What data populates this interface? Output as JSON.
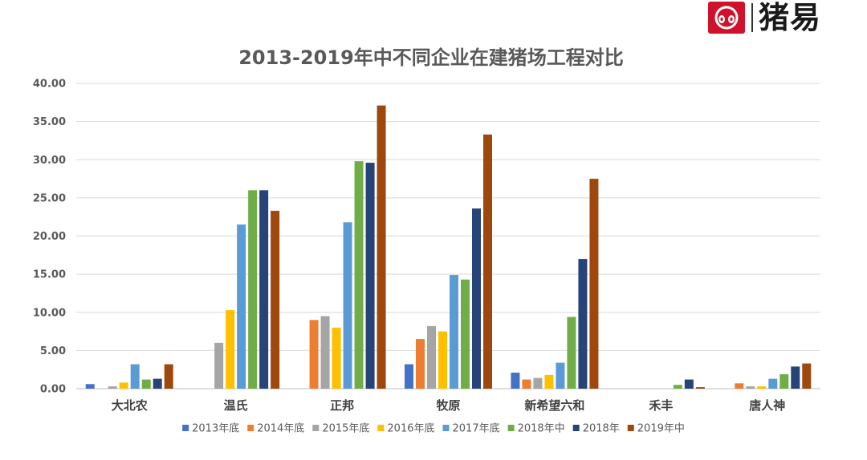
{
  "brand": {
    "name": "猪易",
    "accent": "#d0112b"
  },
  "chart_data": {
    "type": "bar",
    "title": "2013-2019年中不同企业在建猪场工程对比",
    "xlabel": "",
    "ylabel": "",
    "ylim": [
      0,
      40
    ],
    "yticks": [
      "0.00",
      "5.00",
      "10.00",
      "15.00",
      "20.00",
      "25.00",
      "30.00",
      "35.00",
      "40.00"
    ],
    "grid": true,
    "legend_position": "bottom",
    "categories": [
      "大北农",
      "温氏",
      "正邦",
      "牧原",
      "新希望六和",
      "禾丰",
      "唐人神"
    ],
    "series": [
      {
        "name": "2013年底",
        "color": "#4472c4",
        "values": [
          0.6,
          0,
          0,
          3.2,
          2.1,
          0,
          0
        ]
      },
      {
        "name": "2014年底",
        "color": "#ed7d31",
        "values": [
          0,
          0,
          9.0,
          6.5,
          1.2,
          0,
          0.7
        ]
      },
      {
        "name": "2015年底",
        "color": "#a5a5a5",
        "values": [
          0.3,
          6.0,
          9.5,
          8.2,
          1.4,
          0,
          0.3
        ]
      },
      {
        "name": "2016年底",
        "color": "#ffc000",
        "values": [
          0.8,
          10.3,
          8.0,
          7.5,
          1.8,
          0,
          0.3
        ]
      },
      {
        "name": "2017年底",
        "color": "#5b9bd5",
        "values": [
          3.2,
          21.5,
          21.8,
          14.9,
          3.4,
          0,
          1.3
        ]
      },
      {
        "name": "2018年中",
        "color": "#70ad47",
        "values": [
          1.2,
          26.0,
          29.8,
          14.3,
          9.4,
          0.5,
          1.9
        ]
      },
      {
        "name": "2018年",
        "color": "#264478",
        "values": [
          1.3,
          26.0,
          29.6,
          23.6,
          17.0,
          1.2,
          2.9
        ]
      },
      {
        "name": "2019年中",
        "color": "#9e480e",
        "values": [
          3.2,
          23.3,
          37.1,
          33.3,
          27.5,
          0.2,
          3.3
        ]
      }
    ]
  }
}
